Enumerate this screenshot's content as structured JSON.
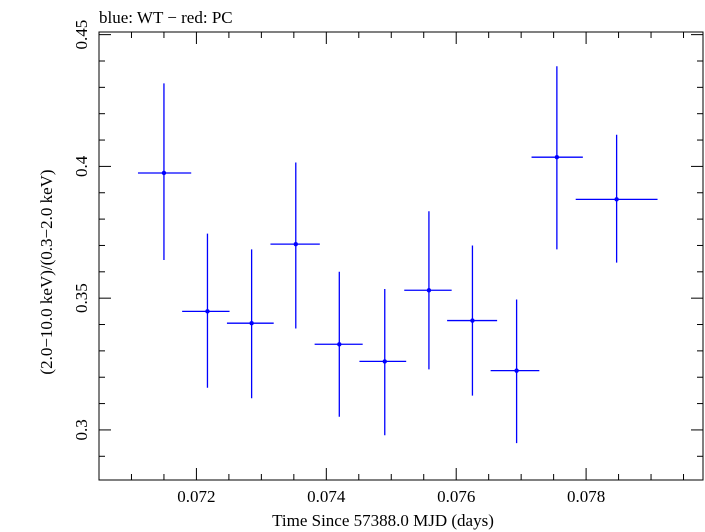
{
  "chart_data": {
    "type": "scatter",
    "title": "blue: WT − red: PC",
    "xlabel": "Time Since 57388.0 MJD (days)",
    "ylabel": "(2.0−10.0 keV)/(0.3−2.0 keV)",
    "xlim": [
      0.0705,
      0.0798
    ],
    "ylim": [
      0.281,
      0.451
    ],
    "x_major_ticks": [
      0.072,
      0.074,
      0.076,
      0.078
    ],
    "x_tick_labels": [
      "0.072",
      "0.074",
      "0.076",
      "0.078"
    ],
    "y_major_ticks": [
      0.3,
      0.35,
      0.4,
      0.45
    ],
    "y_tick_labels": [
      "0.3",
      "0.35",
      "0.4",
      "0.45"
    ],
    "x_minor_step": 0.0005,
    "y_minor_step": 0.01,
    "grid": false,
    "series": [
      {
        "color": "#0000ff",
        "points": [
          {
            "x": 0.0715,
            "y": 0.3975,
            "xlo": 0.0711,
            "xhi": 0.07192,
            "ylo": 0.3645,
            "yhi": 0.4315
          },
          {
            "x": 0.07217,
            "y": 0.345,
            "xlo": 0.07178,
            "xhi": 0.07251,
            "ylo": 0.316,
            "yhi": 0.3745
          },
          {
            "x": 0.07285,
            "y": 0.3405,
            "xlo": 0.07247,
            "xhi": 0.07319,
            "ylo": 0.312,
            "yhi": 0.3685
          },
          {
            "x": 0.07353,
            "y": 0.3705,
            "xlo": 0.07314,
            "xhi": 0.0739,
            "ylo": 0.3385,
            "yhi": 0.4015
          },
          {
            "x": 0.0742,
            "y": 0.3325,
            "xlo": 0.07382,
            "xhi": 0.07456,
            "ylo": 0.305,
            "yhi": 0.36
          },
          {
            "x": 0.0749,
            "y": 0.326,
            "xlo": 0.07451,
            "xhi": 0.07523,
            "ylo": 0.298,
            "yhi": 0.3535
          },
          {
            "x": 0.07558,
            "y": 0.353,
            "xlo": 0.0752,
            "xhi": 0.07593,
            "ylo": 0.323,
            "yhi": 0.383
          },
          {
            "x": 0.07625,
            "y": 0.3415,
            "xlo": 0.07586,
            "xhi": 0.07663,
            "ylo": 0.313,
            "yhi": 0.37
          },
          {
            "x": 0.07693,
            "y": 0.3225,
            "xlo": 0.07653,
            "xhi": 0.07728,
            "ylo": 0.295,
            "yhi": 0.3495
          },
          {
            "x": 0.07755,
            "y": 0.4035,
            "xlo": 0.07716,
            "xhi": 0.07795,
            "ylo": 0.3685,
            "yhi": 0.438
          },
          {
            "x": 0.07847,
            "y": 0.3875,
            "xlo": 0.07784,
            "xhi": 0.0791,
            "ylo": 0.3635,
            "yhi": 0.412
          }
        ]
      }
    ]
  }
}
